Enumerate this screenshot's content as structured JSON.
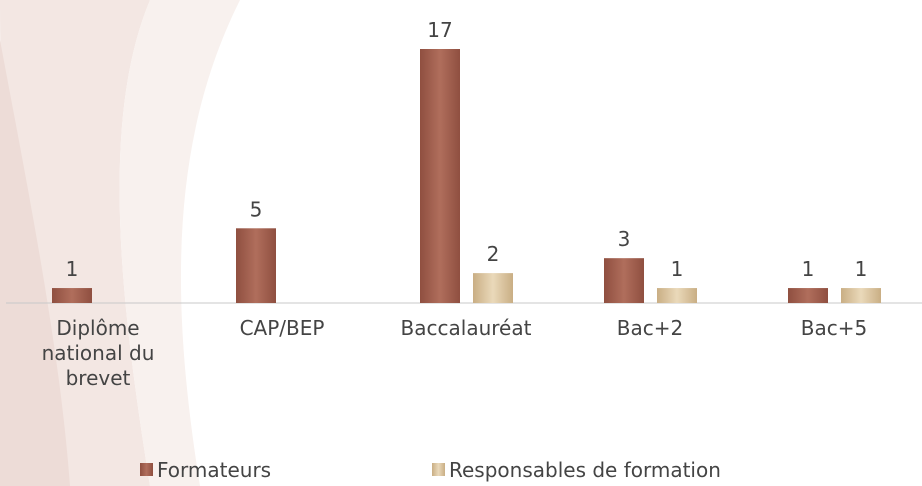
{
  "chart_data": {
    "type": "bar",
    "categories": [
      "Diplôme national du brevet",
      "CAP/BEP",
      "Baccalauréat",
      "Bac+2",
      "Bac+5"
    ],
    "series": [
      {
        "name": "Formateurs",
        "color": "#a3604f",
        "values": [
          1,
          5,
          17,
          3,
          1
        ]
      },
      {
        "name": "Responsables de formation",
        "color": "#d8c39f",
        "values": [
          null,
          null,
          2,
          1,
          1
        ]
      }
    ],
    "legend": "bottom"
  }
}
